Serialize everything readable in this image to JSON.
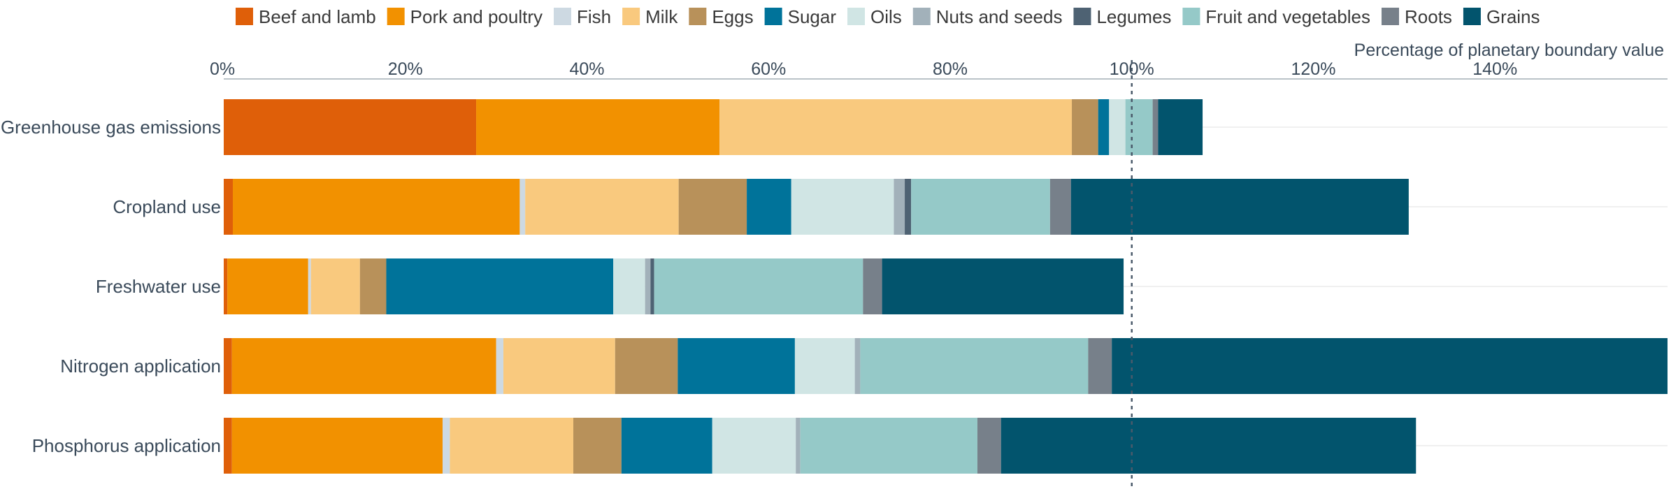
{
  "chart_data": {
    "type": "bar",
    "orientation": "horizontal",
    "stacked": true,
    "xlabel": "Percentage of planetary boundary value",
    "xlim": [
      0,
      159
    ],
    "xticks": [
      0,
      20,
      40,
      60,
      80,
      100,
      120,
      140
    ],
    "xtick_labels": [
      "0%",
      "20%",
      "40%",
      "60%",
      "80%",
      "100%",
      "120%",
      "140%"
    ],
    "reference_line": 100,
    "legend_position": "top",
    "grid": "horizontal lines at categories",
    "categories": [
      "Greenhouse gas emissions",
      "Cropland use",
      "Freshwater use",
      "Nitrogen application",
      "Phosphorus application"
    ],
    "series": [
      {
        "name": "Beef and lamb",
        "color": "#df5f09",
        "values": [
          27.8,
          1.0,
          0.4,
          0.9,
          0.9
        ]
      },
      {
        "name": "Pork and poultry",
        "color": "#f29100",
        "values": [
          26.8,
          31.6,
          8.9,
          29.1,
          23.2
        ]
      },
      {
        "name": "Fish",
        "color": "#cdd9e2",
        "values": [
          0.0,
          0.6,
          0.3,
          0.8,
          0.8
        ]
      },
      {
        "name": "Milk",
        "color": "#f9c97e",
        "values": [
          38.8,
          16.9,
          5.4,
          12.3,
          13.6
        ]
      },
      {
        "name": "Eggs",
        "color": "#b8915a",
        "values": [
          2.9,
          7.5,
          2.9,
          6.9,
          5.3
        ]
      },
      {
        "name": "Sugar",
        "color": "#00739a",
        "values": [
          1.2,
          4.9,
          25.0,
          12.9,
          10.0
        ]
      },
      {
        "name": "Oils",
        "color": "#d0e5e4",
        "values": [
          1.8,
          11.3,
          3.5,
          6.6,
          9.2
        ]
      },
      {
        "name": "Nuts and seeds",
        "color": "#a2b1ba",
        "values": [
          0.0,
          1.2,
          0.6,
          0.6,
          0.5
        ]
      },
      {
        "name": "Legumes",
        "color": "#4e6273",
        "values": [
          0.0,
          0.7,
          0.4,
          0.0,
          0.0
        ]
      },
      {
        "name": "Fruit and vegetables",
        "color": "#95c9c8",
        "values": [
          3.0,
          15.3,
          23.0,
          25.1,
          19.5
        ]
      },
      {
        "name": "Roots",
        "color": "#77808a",
        "values": [
          0.6,
          2.3,
          2.1,
          2.6,
          2.6
        ]
      },
      {
        "name": "Grains",
        "color": "#02546d",
        "values": [
          4.9,
          37.2,
          26.6,
          61.2,
          45.7
        ]
      }
    ]
  }
}
